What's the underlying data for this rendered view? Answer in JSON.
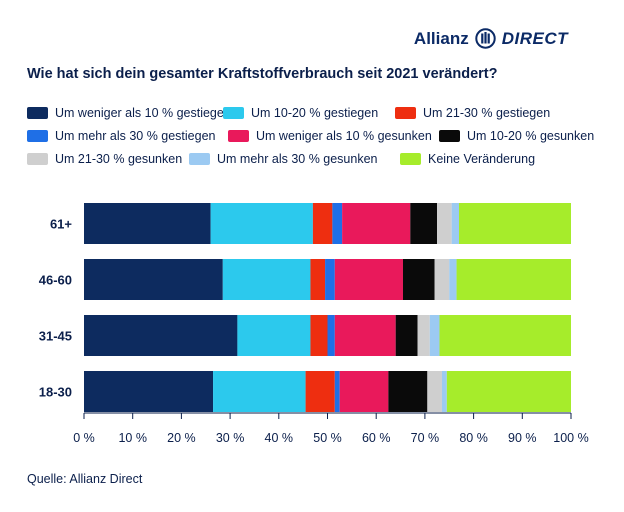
{
  "brand": {
    "name": "Allianz",
    "sub": "DIRECT",
    "logo_icon": "allianz-eagle-icon"
  },
  "title": "Wie hat sich dein gesamter Kraftstoffverbrauch seit 2021 verändert?",
  "source": "Quelle: Allianz Direct",
  "chart_data": {
    "type": "bar",
    "orientation": "horizontal",
    "stacked": true,
    "title": "Wie hat sich dein gesamter Kraftstoffverbrauch seit 2021 verändert?",
    "categories": [
      "61+",
      "46-60",
      "31-45",
      "18-30"
    ],
    "xlim": [
      0,
      100
    ],
    "x_ticks": [
      "0 %",
      "10 %",
      "20 %",
      "30 %",
      "40 %",
      "50 %",
      "60 %",
      "70 %",
      "80 %",
      "90 %",
      "100 %"
    ],
    "legend_position": "top",
    "series": [
      {
        "name": "Um weniger als 10 % gestiegen",
        "color": "#0d2b5f",
        "values": [
          26,
          28.5,
          31.5,
          26.5
        ]
      },
      {
        "name": "Um 10-20 % gestiegen",
        "color": "#2cc9ed",
        "values": [
          21,
          18,
          15,
          19
        ]
      },
      {
        "name": "Um 21-30 % gestiegen",
        "color": "#ee2e10",
        "values": [
          4,
          3,
          3.5,
          6
        ]
      },
      {
        "name": "Um mehr als 30 % gestiegen",
        "color": "#1f6fe6",
        "values": [
          2,
          2,
          1.5,
          1
        ]
      },
      {
        "name": "Um weniger als 10 % gesunken",
        "color": "#e9195b",
        "values": [
          14,
          14,
          12.5,
          10
        ]
      },
      {
        "name": "Um 10-20 % gesunken",
        "color": "#0a0a0a",
        "values": [
          5.5,
          6.5,
          4.5,
          8
        ]
      },
      {
        "name": "Um 21-30 % gesunken",
        "color": "#cfcfcf",
        "values": [
          3,
          3,
          2.5,
          3
        ]
      },
      {
        "name": "Um mehr als 30 % gesunken",
        "color": "#9ccaf2",
        "values": [
          1.5,
          1.5,
          2,
          1
        ]
      },
      {
        "name": "Keine Veränderung",
        "color": "#a6ec2b",
        "values": [
          23,
          23.5,
          27,
          25.5
        ]
      }
    ]
  }
}
